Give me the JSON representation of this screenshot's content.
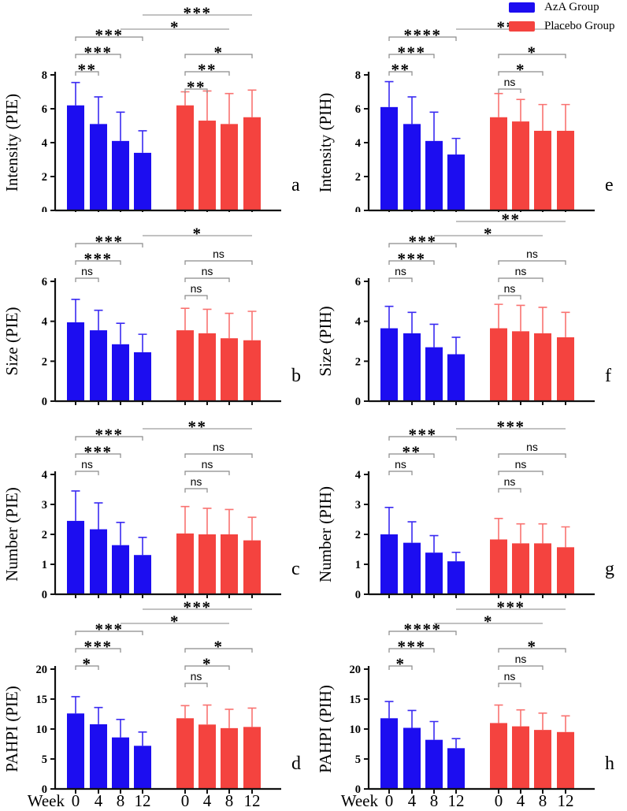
{
  "figure": {
    "description": "Eight-panel bar figure comparing AzA Group vs Placebo Group over weeks 0, 4, 8, 12",
    "panel_letters": [
      "a",
      "b",
      "c",
      "d",
      "e",
      "f",
      "g",
      "h"
    ]
  },
  "legend": {
    "items": [
      {
        "label": "AzA Group",
        "color_key": "aza"
      },
      {
        "label": "Placebo Group",
        "color_key": "placebo"
      }
    ]
  },
  "colors": {
    "aza": "#1c0df0",
    "placebo": "#f4433f",
    "aza_err": "#3a2bf2",
    "placebo_err": "#f97371",
    "axis": "#111111",
    "bracket": "#8a8a8a",
    "cross_line": "#9e9e9e",
    "sig_label": "#000000"
  },
  "x_axis": {
    "prefix": "Week",
    "week_ticks": [
      "0",
      "4",
      "8",
      "12"
    ]
  },
  "chart_data": [
    {
      "id": "a",
      "letter": "a",
      "type": "bar",
      "ylabel": "Intensity (PIE)",
      "ylim": [
        0,
        8
      ],
      "yticks": [
        0,
        2,
        4,
        6,
        8
      ],
      "categories": [
        "Week 0",
        "Week 4",
        "Week 8",
        "Week 12"
      ],
      "series": [
        {
          "name": "AzA Group",
          "color_key": "aza",
          "means": [
            6.2,
            5.1,
            4.1,
            3.4
          ],
          "err_top": [
            7.55,
            6.7,
            5.8,
            4.7
          ]
        },
        {
          "name": "Placebo Group",
          "color_key": "placebo",
          "means": [
            6.2,
            5.3,
            5.1,
            5.5
          ],
          "err_top": [
            7.0,
            7.05,
            6.9,
            7.1
          ]
        }
      ],
      "sig_within_aza": [
        "**",
        "***",
        "***"
      ],
      "sig_within_placebo": [
        "**",
        "**",
        "*"
      ],
      "sig_between": [
        {
          "week_index": 3,
          "label": "***",
          "level": "upper"
        },
        {
          "week_index": 2,
          "label": "*",
          "level": "lower"
        }
      ]
    },
    {
      "id": "b",
      "letter": "b",
      "type": "bar",
      "ylabel": "Size (PIE)",
      "ylim": [
        0,
        6
      ],
      "yticks": [
        0,
        2,
        4,
        6
      ],
      "categories": [
        "Week 0",
        "Week 4",
        "Week 8",
        "Week 12"
      ],
      "series": [
        {
          "name": "AzA Group",
          "color_key": "aza",
          "means": [
            3.95,
            3.55,
            2.85,
            2.45
          ],
          "err_top": [
            5.1,
            4.55,
            3.9,
            3.35
          ]
        },
        {
          "name": "Placebo Group",
          "color_key": "placebo",
          "means": [
            3.55,
            3.4,
            3.15,
            3.05
          ],
          "err_top": [
            4.65,
            4.6,
            4.4,
            4.5
          ]
        }
      ],
      "sig_within_aza": [
        "ns",
        "***",
        "***"
      ],
      "sig_within_placebo": [
        "ns",
        "ns",
        "ns"
      ],
      "sig_between": [
        {
          "week_index": 3,
          "label": "*",
          "level": "single"
        }
      ]
    },
    {
      "id": "c",
      "letter": "c",
      "type": "bar",
      "ylabel": "Number (PIE)",
      "ylim": [
        0,
        4
      ],
      "yticks": [
        0,
        1,
        2,
        3,
        4
      ],
      "categories": [
        "Week 0",
        "Week 4",
        "Week 8",
        "Week 12"
      ],
      "series": [
        {
          "name": "AzA Group",
          "color_key": "aza",
          "means": [
            2.45,
            2.17,
            1.64,
            1.31
          ],
          "err_top": [
            3.45,
            3.05,
            2.4,
            1.9
          ]
        },
        {
          "name": "Placebo Group",
          "color_key": "placebo",
          "means": [
            2.03,
            2.0,
            2.0,
            1.8
          ],
          "err_top": [
            2.93,
            2.87,
            2.83,
            2.57
          ]
        }
      ],
      "sig_within_aza": [
        "ns",
        "***",
        "***"
      ],
      "sig_within_placebo": [
        "ns",
        "ns",
        "ns"
      ],
      "sig_between": [
        {
          "week_index": 3,
          "label": "**",
          "level": "single"
        }
      ]
    },
    {
      "id": "d",
      "letter": "d",
      "type": "bar",
      "ylabel": "PAHPI (PIE)",
      "ylim": [
        0,
        20
      ],
      "yticks": [
        0,
        5,
        10,
        15,
        20
      ],
      "categories": [
        "Week 0",
        "Week 4",
        "Week 8",
        "Week 12"
      ],
      "series": [
        {
          "name": "AzA Group",
          "color_key": "aza",
          "means": [
            12.6,
            10.8,
            8.6,
            7.2
          ],
          "err_top": [
            15.4,
            13.6,
            11.6,
            9.5
          ]
        },
        {
          "name": "Placebo Group",
          "color_key": "placebo",
          "means": [
            11.8,
            10.75,
            10.15,
            10.35
          ],
          "err_top": [
            13.9,
            14.0,
            13.3,
            13.5
          ]
        }
      ],
      "sig_within_aza": [
        "*",
        "***",
        "***"
      ],
      "sig_within_placebo": [
        "ns",
        "*",
        "*"
      ],
      "sig_between": [
        {
          "week_index": 3,
          "label": "***",
          "level": "upper"
        },
        {
          "week_index": 2,
          "label": "*",
          "level": "lower"
        }
      ]
    },
    {
      "id": "e",
      "letter": "e",
      "type": "bar",
      "ylabel": "Intensity (PIH)",
      "ylim": [
        0,
        8
      ],
      "yticks": [
        0,
        2,
        4,
        6,
        8
      ],
      "categories": [
        "Week 0",
        "Week 4",
        "Week 8",
        "Week 12"
      ],
      "series": [
        {
          "name": "AzA Group",
          "color_key": "aza",
          "means": [
            6.1,
            5.1,
            4.1,
            3.3
          ],
          "err_top": [
            7.6,
            6.7,
            5.8,
            4.25
          ]
        },
        {
          "name": "Placebo Group",
          "color_key": "placebo",
          "means": [
            5.5,
            5.25,
            4.7,
            4.7
          ],
          "err_top": [
            6.9,
            6.55,
            6.25,
            6.25
          ]
        }
      ],
      "sig_within_aza": [
        "**",
        "***",
        "****"
      ],
      "sig_within_placebo": [
        "ns",
        "*",
        "*"
      ],
      "sig_between": [
        {
          "week_index": 3,
          "label": "***",
          "level": "single"
        }
      ]
    },
    {
      "id": "f",
      "letter": "f",
      "type": "bar",
      "ylabel": "Size (PIH)",
      "ylim": [
        0,
        6
      ],
      "yticks": [
        0,
        2,
        4,
        6
      ],
      "categories": [
        "Week 0",
        "Week 4",
        "Week 8",
        "Week 12"
      ],
      "series": [
        {
          "name": "AzA Group",
          "color_key": "aza",
          "means": [
            3.65,
            3.4,
            2.7,
            2.35
          ],
          "err_top": [
            4.75,
            4.45,
            3.85,
            3.2
          ]
        },
        {
          "name": "Placebo Group",
          "color_key": "placebo",
          "means": [
            3.65,
            3.5,
            3.4,
            3.2
          ],
          "err_top": [
            4.85,
            4.8,
            4.7,
            4.45
          ]
        }
      ],
      "sig_within_aza": [
        "ns",
        "***",
        "***"
      ],
      "sig_within_placebo": [
        "ns",
        "ns",
        "ns"
      ],
      "sig_between": [
        {
          "week_index": 3,
          "label": "**",
          "level": "upper"
        },
        {
          "week_index": 2,
          "label": "*",
          "level": "lower"
        }
      ]
    },
    {
      "id": "g",
      "letter": "g",
      "type": "bar",
      "ylabel": "Number (PIH)",
      "ylim": [
        0,
        4
      ],
      "yticks": [
        0,
        1,
        2,
        3,
        4
      ],
      "categories": [
        "Week 0",
        "Week 4",
        "Week 8",
        "Week 12"
      ],
      "series": [
        {
          "name": "AzA Group",
          "color_key": "aza",
          "means": [
            2.0,
            1.72,
            1.39,
            1.1
          ],
          "err_top": [
            2.9,
            2.42,
            1.96,
            1.4
          ]
        },
        {
          "name": "Placebo Group",
          "color_key": "placebo",
          "means": [
            1.83,
            1.7,
            1.7,
            1.57
          ],
          "err_top": [
            2.53,
            2.35,
            2.35,
            2.25
          ]
        }
      ],
      "sig_within_aza": [
        "ns",
        "**",
        "***"
      ],
      "sig_within_placebo": [
        "ns",
        "ns",
        "ns"
      ],
      "sig_between": [
        {
          "week_index": 3,
          "label": "***",
          "level": "single"
        }
      ]
    },
    {
      "id": "h",
      "letter": "h",
      "type": "bar",
      "ylabel": "PAHPI (PIH)",
      "ylim": [
        0,
        20
      ],
      "yticks": [
        0,
        5,
        10,
        15,
        20
      ],
      "categories": [
        "Week 0",
        "Week 4",
        "Week 8",
        "Week 12"
      ],
      "series": [
        {
          "name": "AzA Group",
          "color_key": "aza",
          "means": [
            11.8,
            10.2,
            8.2,
            6.8
          ],
          "err_top": [
            14.6,
            13.1,
            11.25,
            8.4
          ]
        },
        {
          "name": "Placebo Group",
          "color_key": "placebo",
          "means": [
            11.0,
            10.45,
            9.85,
            9.5
          ],
          "err_top": [
            14.0,
            13.2,
            12.65,
            12.2
          ]
        }
      ],
      "sig_within_aza": [
        "*",
        "***",
        "****"
      ],
      "sig_within_placebo": [
        "ns",
        "ns",
        "*"
      ],
      "sig_between": [
        {
          "week_index": 3,
          "label": "***",
          "level": "upper"
        },
        {
          "week_index": 2,
          "label": "*",
          "level": "lower"
        }
      ]
    }
  ]
}
